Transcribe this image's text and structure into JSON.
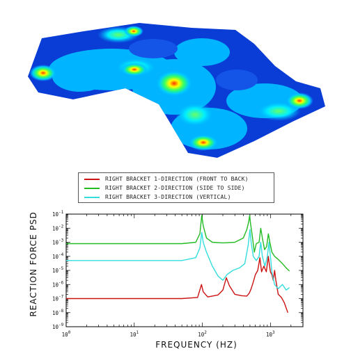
{
  "chart_data": {
    "type": "line",
    "xlabel": "FREQUENCY (HZ)",
    "ylabel": "REACTION FORCE PSD",
    "x_scale": "log",
    "y_scale": "log",
    "xlim": [
      1,
      3000
    ],
    "ylim": [
      1e-09,
      0.1
    ],
    "x_ticks": [
      {
        "value": 1,
        "mant": "10",
        "exp": "0"
      },
      {
        "value": 10,
        "mant": "10",
        "exp": "1"
      },
      {
        "value": 100,
        "mant": "10",
        "exp": "2"
      },
      {
        "value": 1000,
        "mant": "10",
        "exp": "3"
      }
    ],
    "y_ticks": [
      {
        "value": 1e-09,
        "mant": "10",
        "exp": "-9"
      },
      {
        "value": 1e-08,
        "mant": "10",
        "exp": "-8"
      },
      {
        "value": 1e-07,
        "mant": "10",
        "exp": "-7"
      },
      {
        "value": 1e-06,
        "mant": "10",
        "exp": "-6"
      },
      {
        "value": 1e-05,
        "mant": "10",
        "exp": "-5"
      },
      {
        "value": 0.0001,
        "mant": "10",
        "exp": "-4"
      },
      {
        "value": 0.001,
        "mant": "10",
        "exp": "-3"
      },
      {
        "value": 0.01,
        "mant": "10",
        "exp": "-2"
      },
      {
        "value": 0.1,
        "mant": "10",
        "exp": "-1"
      }
    ],
    "legend_position": "top-center",
    "series": [
      {
        "name": "RIGHT BRACKET 1-DIRECTION (FRONT TO BACK)",
        "color": "#cc1111",
        "points": [
          [
            1,
            1e-07
          ],
          [
            50,
            1e-07
          ],
          [
            85,
            1.2e-07
          ],
          [
            97,
            1e-06
          ],
          [
            103,
            3e-07
          ],
          [
            120,
            1.3e-07
          ],
          [
            170,
            1.8e-07
          ],
          [
            200,
            4e-07
          ],
          [
            225,
            3e-06
          ],
          [
            250,
            8e-07
          ],
          [
            300,
            2e-07
          ],
          [
            380,
            1.6e-07
          ],
          [
            450,
            1.5e-07
          ],
          [
            490,
            2.5e-07
          ],
          [
            520,
            5e-07
          ],
          [
            560,
            1.5e-06
          ],
          [
            600,
            5e-06
          ],
          [
            650,
            1e-05
          ],
          [
            700,
            8e-05
          ],
          [
            740,
            8e-06
          ],
          [
            800,
            2e-05
          ],
          [
            870,
            8e-06
          ],
          [
            930,
            0.0001
          ],
          [
            970,
            2e-05
          ],
          [
            1000,
            8e-06
          ],
          [
            1050,
            5e-06
          ],
          [
            1100,
            2e-06
          ],
          [
            1150,
            1e-05
          ],
          [
            1200,
            2e-06
          ],
          [
            1300,
            2e-07
          ],
          [
            1450,
            1.2e-07
          ],
          [
            1600,
            5e-08
          ],
          [
            1800,
            1e-08
          ]
        ]
      },
      {
        "name": "RIGHT BRACKET 2-DIRECTION (SIDE TO SIDE)",
        "color": "#22bb22",
        "points": [
          [
            1,
            0.0008
          ],
          [
            50,
            0.0008
          ],
          [
            80,
            0.001
          ],
          [
            92,
            0.004
          ],
          [
            98,
            0.08
          ],
          [
            103,
            0.015
          ],
          [
            115,
            0.002
          ],
          [
            140,
            0.001
          ],
          [
            200,
            0.0009
          ],
          [
            300,
            0.001
          ],
          [
            400,
            0.002
          ],
          [
            450,
            0.008
          ],
          [
            480,
            0.03
          ],
          [
            495,
            0.08
          ],
          [
            510,
            0.02
          ],
          [
            540,
            0.003
          ],
          [
            580,
            0.0002
          ],
          [
            620,
            0.0008
          ],
          [
            680,
            0.001
          ],
          [
            720,
            0.01
          ],
          [
            760,
            0.002
          ],
          [
            820,
            0.0003
          ],
          [
            880,
            0.0005
          ],
          [
            930,
            0.004
          ],
          [
            980,
            0.001
          ],
          [
            1050,
            0.0002
          ],
          [
            1150,
            0.0001
          ],
          [
            1300,
            6e-05
          ],
          [
            1500,
            3e-05
          ],
          [
            1700,
            1.5e-05
          ],
          [
            1900,
            9e-06
          ]
        ]
      },
      {
        "name": "RIGHT BRACKET 3-DIRECTION (VERTICAL)",
        "color": "#33dddd",
        "points": [
          [
            1,
            5e-05
          ],
          [
            50,
            5e-05
          ],
          [
            80,
            8e-05
          ],
          [
            92,
            0.0004
          ],
          [
            98,
            0.005
          ],
          [
            103,
            0.001
          ],
          [
            115,
            0.0002
          ],
          [
            140,
            2e-05
          ],
          [
            170,
            4e-06
          ],
          [
            200,
            2e-06
          ],
          [
            230,
            5e-06
          ],
          [
            280,
            1e-05
          ],
          [
            350,
            1.5e-05
          ],
          [
            420,
            3e-05
          ],
          [
            470,
            0.0006
          ],
          [
            500,
            0.008
          ],
          [
            520,
            0.001
          ],
          [
            560,
            0.0001
          ],
          [
            620,
            5e-05
          ],
          [
            680,
            0.0001
          ],
          [
            720,
            0.001
          ],
          [
            760,
            0.0001
          ],
          [
            830,
            2e-05
          ],
          [
            900,
            0.0001
          ],
          [
            950,
            0.001
          ],
          [
            1000,
            0.0001
          ],
          [
            1050,
            8e-06
          ],
          [
            1150,
            1e-06
          ],
          [
            1300,
            5e-07
          ],
          [
            1500,
            1e-06
          ],
          [
            1700,
            4e-07
          ],
          [
            1900,
            6e-07
          ]
        ]
      }
    ]
  }
}
